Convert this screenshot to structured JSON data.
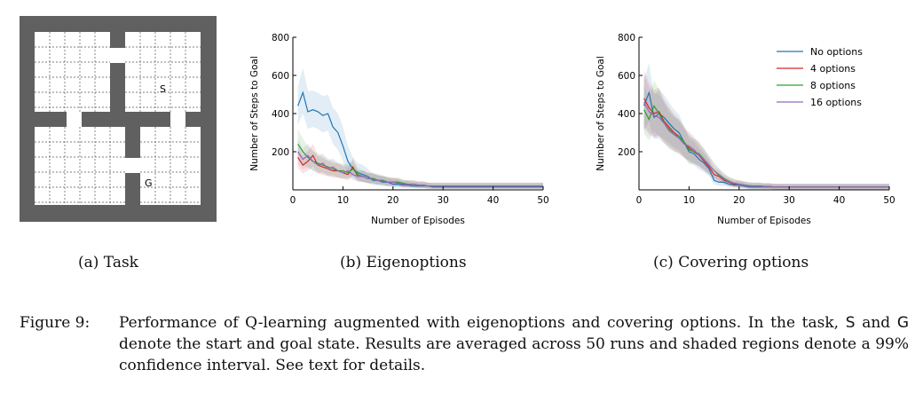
{
  "figure": {
    "subcaptions": {
      "task": "(a) Task",
      "eigen": "(b) Eigenoptions",
      "cover": "(c) Covering options"
    },
    "caption": {
      "label": "Figure 9:",
      "part1": "Performance of Q-learning augmented with eigenoptions and covering options. In the task, ",
      "start_symbol": "S",
      "part2": " and ",
      "goal_symbol": "G",
      "part3": " denote the start and goal state. Results are averaged across 50 runs and shaded regions denote a 99% confidence interval. See text for details."
    }
  },
  "gridworld": {
    "start_label": "S",
    "goal_label": "G",
    "wall_color": "#606060",
    "floor_color": "#ffffff"
  },
  "colors": {
    "no_options": "#1f77b4",
    "4_options": "#d62728",
    "8_options": "#2ca02c",
    "16_options": "#9467bd"
  },
  "chart_data": [
    {
      "type": "line",
      "xlabel": "Number of Episodes",
      "ylabel": "Number of Steps to Goal",
      "xlim": [
        0,
        50
      ],
      "ylim": [
        0,
        800
      ],
      "xticks": [
        0,
        10,
        20,
        30,
        40,
        50
      ],
      "yticks": [
        200,
        400,
        600,
        800
      ],
      "grid": false,
      "legend": null,
      "x": [
        1,
        2,
        3,
        4,
        5,
        6,
        7,
        8,
        9,
        10,
        11,
        12,
        13,
        14,
        15,
        16,
        17,
        18,
        19,
        20,
        21,
        22,
        23,
        24,
        25,
        26,
        27,
        28,
        29,
        30,
        31,
        32,
        33,
        34,
        35,
        36,
        37,
        38,
        39,
        40,
        41,
        42,
        43,
        44,
        45,
        46,
        47,
        48,
        49,
        50
      ],
      "series": [
        {
          "name": "No options",
          "color": "#1f77b4",
          "values": [
            440,
            510,
            410,
            420,
            410,
            390,
            400,
            330,
            300,
            230,
            150,
            110,
            90,
            80,
            70,
            50,
            50,
            40,
            40,
            30,
            30,
            25,
            25,
            20,
            20,
            20,
            20,
            15,
            15,
            15,
            15,
            15,
            15,
            15,
            15,
            15,
            15,
            15,
            15,
            15,
            15,
            15,
            15,
            15,
            15,
            15,
            15,
            15,
            15,
            15
          ],
          "band": [
            [
              340,
              540
            ],
            [
              400,
              640
            ],
            [
              320,
              520
            ],
            [
              330,
              520
            ],
            [
              320,
              510
            ],
            [
              300,
              490
            ],
            [
              310,
              500
            ],
            [
              240,
              430
            ],
            [
              210,
              400
            ],
            [
              150,
              330
            ],
            [
              90,
              230
            ],
            [
              60,
              170
            ],
            [
              50,
              140
            ],
            [
              40,
              130
            ],
            [
              35,
              110
            ],
            [
              25,
              85
            ],
            [
              25,
              85
            ],
            [
              18,
              70
            ],
            [
              18,
              70
            ],
            [
              12,
              55
            ],
            [
              12,
              55
            ],
            [
              10,
              45
            ],
            [
              10,
              45
            ],
            [
              8,
              38
            ],
            [
              8,
              38
            ],
            [
              8,
              38
            ],
            [
              8,
              38
            ],
            [
              5,
              30
            ],
            [
              5,
              30
            ],
            [
              5,
              30
            ],
            [
              5,
              30
            ],
            [
              5,
              30
            ],
            [
              5,
              30
            ],
            [
              5,
              30
            ],
            [
              5,
              30
            ],
            [
              5,
              30
            ],
            [
              5,
              30
            ],
            [
              5,
              30
            ],
            [
              5,
              30
            ],
            [
              5,
              30
            ],
            [
              5,
              30
            ],
            [
              5,
              30
            ],
            [
              5,
              30
            ],
            [
              5,
              30
            ],
            [
              5,
              30
            ],
            [
              5,
              30
            ],
            [
              5,
              30
            ],
            [
              5,
              30
            ],
            [
              5,
              30
            ],
            [
              5,
              30
            ]
          ]
        },
        {
          "name": "4 options",
          "color": "#d62728",
          "values": [
            170,
            130,
            150,
            180,
            130,
            120,
            110,
            100,
            100,
            90,
            80,
            120,
            70,
            70,
            60,
            60,
            50,
            50,
            40,
            40,
            40,
            30,
            30,
            30,
            25,
            25,
            20,
            20,
            20,
            20,
            20,
            20,
            20,
            20,
            20,
            20,
            20,
            20,
            20,
            20,
            20,
            20,
            20,
            20,
            20,
            20,
            20,
            20,
            20,
            20
          ]
        },
        {
          "name": "8 options",
          "color": "#2ca02c",
          "values": [
            240,
            200,
            170,
            150,
            140,
            130,
            120,
            110,
            100,
            100,
            90,
            110,
            80,
            70,
            60,
            60,
            50,
            50,
            40,
            40,
            40,
            35,
            30,
            30,
            25,
            25,
            20,
            20,
            20,
            20,
            20,
            20,
            20,
            20,
            20,
            20,
            20,
            20,
            20,
            20,
            20,
            20,
            20,
            20,
            20,
            20,
            20,
            20,
            20,
            20
          ]
        },
        {
          "name": "16 options",
          "color": "#9467bd",
          "values": [
            200,
            160,
            180,
            150,
            130,
            140,
            110,
            120,
            100,
            90,
            100,
            80,
            70,
            70,
            60,
            55,
            50,
            45,
            40,
            40,
            35,
            30,
            30,
            28,
            25,
            25,
            20,
            20,
            20,
            20,
            20,
            20,
            20,
            20,
            20,
            20,
            20,
            20,
            20,
            20,
            20,
            20,
            20,
            20,
            20,
            20,
            20,
            20,
            20,
            20
          ]
        }
      ]
    },
    {
      "type": "line",
      "xlabel": "Number of Episodes",
      "ylabel": "Number of Steps to Goal",
      "xlim": [
        0,
        50
      ],
      "ylim": [
        0,
        800
      ],
      "xticks": [
        0,
        10,
        20,
        30,
        40,
        50
      ],
      "yticks": [
        200,
        400,
        600,
        800
      ],
      "grid": false,
      "legend": "top-right",
      "x": [
        1,
        2,
        3,
        4,
        5,
        6,
        7,
        8,
        9,
        10,
        11,
        12,
        13,
        14,
        15,
        16,
        17,
        18,
        19,
        20,
        21,
        22,
        23,
        24,
        25,
        26,
        27,
        28,
        29,
        30,
        31,
        32,
        33,
        34,
        35,
        36,
        37,
        38,
        39,
        40,
        41,
        42,
        43,
        44,
        45,
        46,
        47,
        48,
        49,
        50
      ],
      "series": [
        {
          "name": "No options",
          "color": "#1f77b4",
          "values": [
            440,
            510,
            380,
            400,
            380,
            350,
            320,
            300,
            250,
            200,
            190,
            160,
            140,
            110,
            50,
            40,
            40,
            30,
            25,
            25,
            20,
            15,
            15,
            15,
            15,
            15,
            15,
            15,
            15,
            15,
            15,
            15,
            15,
            15,
            15,
            15,
            15,
            15,
            15,
            15,
            15,
            15,
            15,
            15,
            15,
            15,
            15,
            15,
            15,
            15
          ]
        },
        {
          "name": "4 options",
          "color": "#d62728",
          "values": [
            480,
            430,
            400,
            410,
            360,
            330,
            300,
            280,
            250,
            220,
            200,
            180,
            150,
            120,
            80,
            70,
            50,
            40,
            30,
            30,
            25,
            20,
            20,
            20,
            18,
            18,
            15,
            15,
            15,
            15,
            15,
            15,
            15,
            15,
            15,
            15,
            15,
            15,
            15,
            15,
            15,
            15,
            15,
            15,
            15,
            15,
            15,
            15,
            15,
            15
          ]
        },
        {
          "name": "8 options",
          "color": "#2ca02c",
          "values": [
            420,
            370,
            440,
            400,
            350,
            320,
            290,
            280,
            250,
            210,
            200,
            190,
            160,
            130,
            100,
            80,
            60,
            45,
            35,
            30,
            25,
            22,
            20,
            20,
            18,
            18,
            15,
            15,
            15,
            15,
            15,
            15,
            15,
            15,
            15,
            15,
            15,
            15,
            15,
            15,
            15,
            15,
            15,
            15,
            15,
            15,
            15,
            15,
            15,
            15
          ]
        },
        {
          "name": "16 options",
          "color": "#9467bd",
          "values": [
            460,
            410,
            390,
            380,
            350,
            310,
            290,
            270,
            240,
            230,
            210,
            180,
            160,
            130,
            100,
            75,
            55,
            42,
            35,
            30,
            25,
            22,
            20,
            20,
            18,
            18,
            15,
            15,
            15,
            15,
            15,
            15,
            15,
            15,
            15,
            15,
            15,
            15,
            15,
            15,
            15,
            15,
            15,
            15,
            15,
            15,
            15,
            15,
            15,
            15
          ]
        }
      ]
    }
  ]
}
